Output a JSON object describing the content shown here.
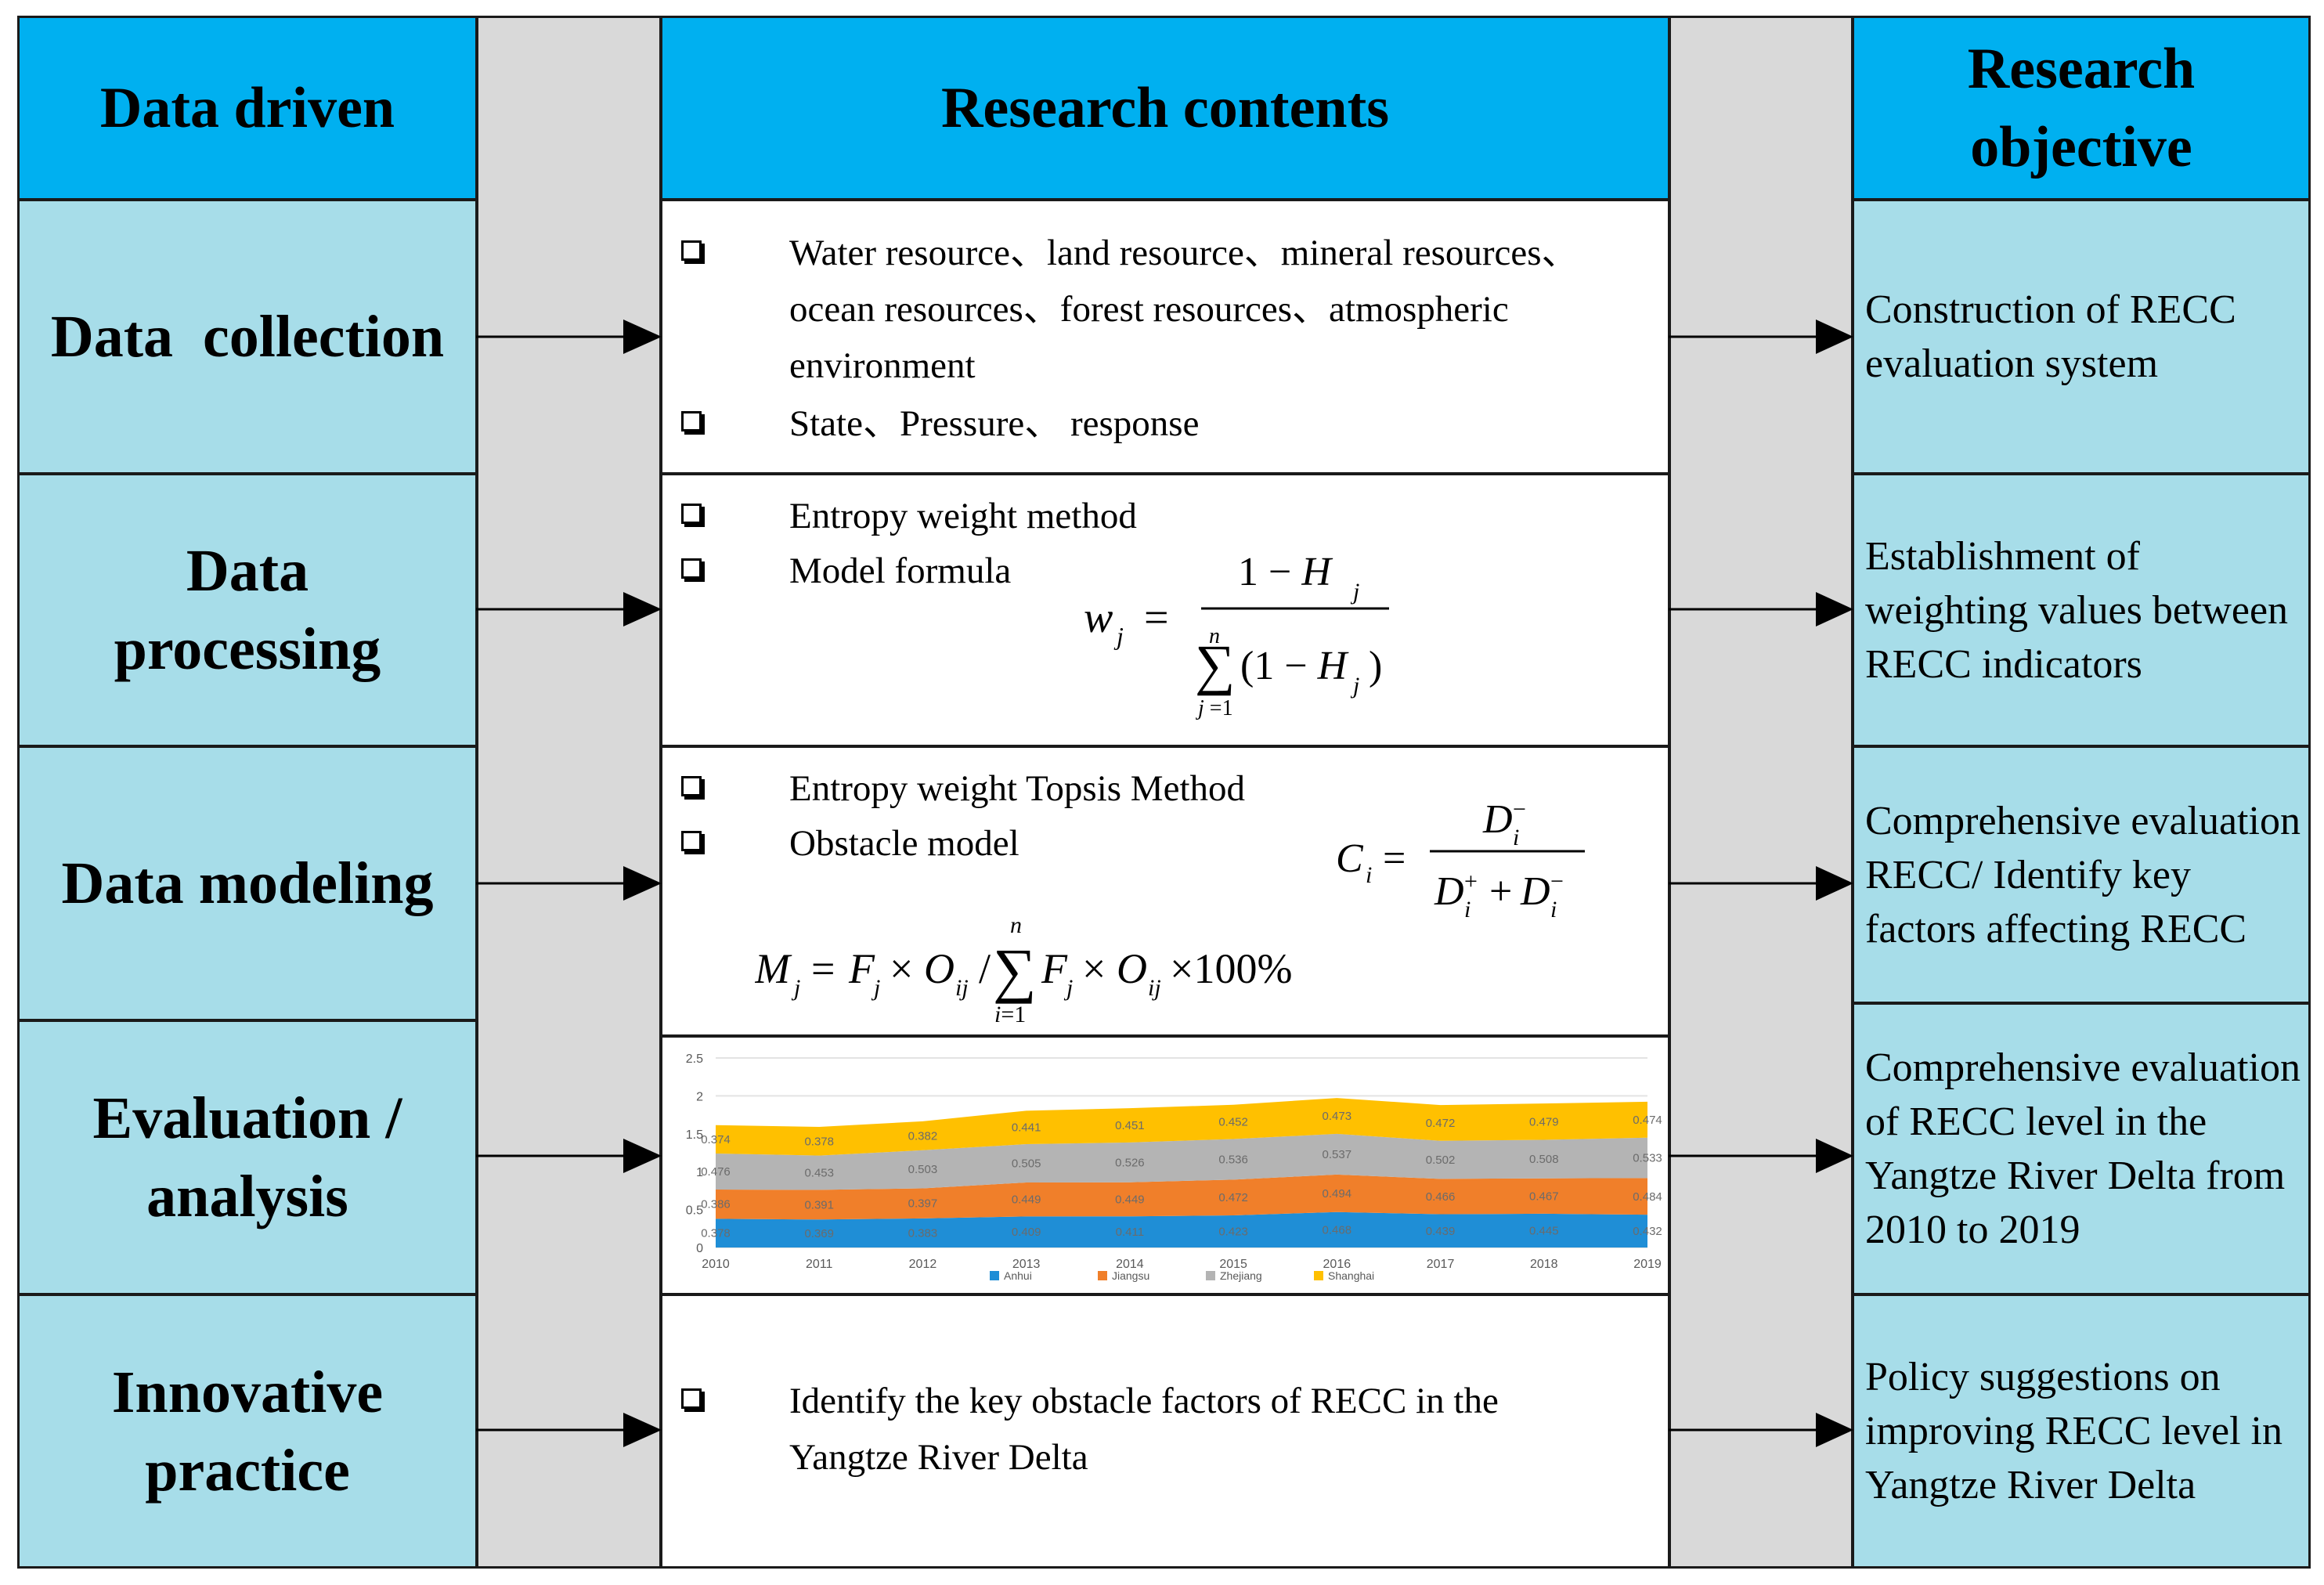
{
  "headers": {
    "left": "Data driven",
    "center": "Research contents",
    "right": "Research objective"
  },
  "stages": [
    "Data  collection",
    "Data processing",
    "Data modeling",
    "Evaluation / analysis",
    "Innovative practice"
  ],
  "contents": {
    "collection": {
      "item1": "Water resource、land resource、mineral resources、ocean resources、forest resources、atmospheric environment",
      "item2": "State、Pressure、 response"
    },
    "processing": {
      "item1": "Entropy weight method",
      "item2": "Model formula"
    },
    "modeling": {
      "item1": "Entropy weight Topsis Method",
      "item2": "Obstacle model"
    },
    "practice": {
      "item1": "Identify the key obstacle factors of RECC in the Yangtze River Delta"
    }
  },
  "objectives": [
    "Construction of RECC evaluation system",
    "Establishment of weighting values between RECC indicators",
    "Comprehensive evaluation RECC/ Identify key factors affecting RECC",
    "Comprehensive evaluation of RECC level in the Yangtze River Delta from 2010 to 2019",
    "Policy suggestions on improving RECC level in Yangtze River Delta"
  ],
  "colors": {
    "header": "#00b0f0",
    "panel": "#a7dde9",
    "connector": "#d9d9d9"
  },
  "chart_data": {
    "type": "area",
    "stacked": true,
    "x": [
      "2010",
      "2011",
      "2012",
      "2013",
      "2014",
      "2015",
      "2016",
      "2017",
      "2018",
      "2019"
    ],
    "ylim": [
      0,
      2.5
    ],
    "yticks": [
      "0",
      "0.5",
      "1",
      "1.5",
      "2",
      "2.5"
    ],
    "grid": true,
    "legend": "bottom",
    "series": [
      {
        "name": "Anhui",
        "color": "#1f8ed6",
        "values": [
          0.378,
          0.369,
          0.383,
          0.409,
          0.411,
          0.423,
          0.468,
          0.439,
          0.445,
          0.432
        ]
      },
      {
        "name": "Jiangsu",
        "color": "#f07f2a",
        "values": [
          0.386,
          0.391,
          0.397,
          0.449,
          0.449,
          0.472,
          0.494,
          0.466,
          0.467,
          0.484
        ]
      },
      {
        "name": "Zhejiang",
        "color": "#b4b4b4",
        "values": [
          0.476,
          0.453,
          0.503,
          0.505,
          0.526,
          0.536,
          0.537,
          0.502,
          0.508,
          0.533
        ]
      },
      {
        "name": "Shanghai",
        "color": "#ffc000",
        "values": [
          0.374,
          0.378,
          0.382,
          0.441,
          0.451,
          0.452,
          0.473,
          0.472,
          0.479,
          0.474
        ]
      }
    ]
  }
}
